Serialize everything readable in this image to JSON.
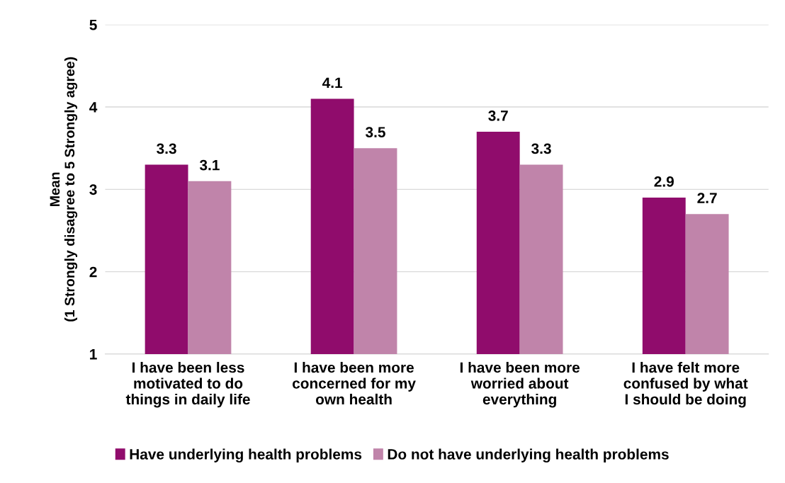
{
  "chart_data": {
    "type": "bar",
    "ylabel": "Mean\n(1 Strongly disagree to 5 Strongly agree)",
    "categories": [
      "I have been less\nmotivated to do\nthings in daily life",
      "I have been more\nconcerned for my\nown health",
      "I have been more\nworried about\neverything",
      "I have felt more\nconfused by what\nI should be doing"
    ],
    "series": [
      {
        "name": "Have underlying health problems",
        "color": "#900c6c",
        "values": [
          3.3,
          4.1,
          3.7,
          2.9
        ]
      },
      {
        "name": "Do not have underlying health problems",
        "color": "#c084aa",
        "values": [
          3.1,
          3.5,
          3.3,
          2.7
        ]
      }
    ],
    "ylim": [
      1,
      5
    ],
    "yticks": [
      1,
      2,
      3,
      4,
      5
    ],
    "grid": "y",
    "legend": "bottom",
    "data_labels": true
  }
}
